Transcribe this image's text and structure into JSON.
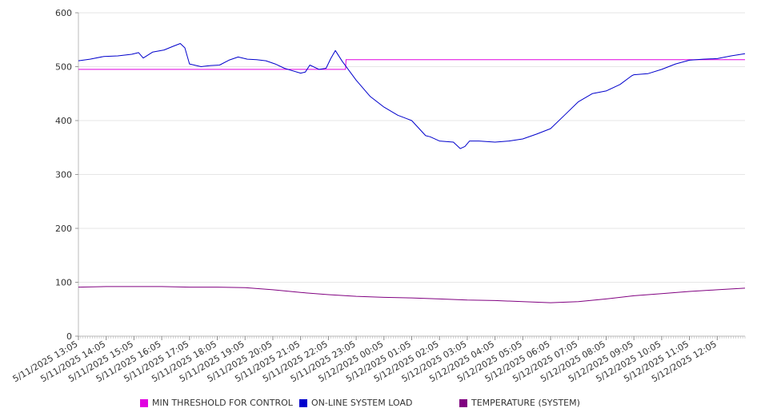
{
  "chart_data": {
    "type": "line",
    "ylim": [
      0,
      600
    ],
    "yticks": [
      0,
      100,
      200,
      300,
      400,
      500,
      600
    ],
    "x_tick_labels": [
      "5/11/2025 13:05",
      "5/11/2025 14:05",
      "5/11/2025 15:05",
      "5/11/2025 16:05",
      "5/11/2025 17:05",
      "5/11/2025 18:05",
      "5/11/2025 19:05",
      "5/11/2025 20:05",
      "5/11/2025 21:05",
      "5/11/2025 22:05",
      "5/11/2025 23:05",
      "5/12/2025 00:05",
      "5/12/2025 01:05",
      "5/12/2025 02:05",
      "5/12/2025 03:05",
      "5/12/2025 04:05",
      "5/12/2025 05:05",
      "5/12/2025 06:05",
      "5/12/2025 07:05",
      "5/12/2025 08:05",
      "5/12/2025 09:05",
      "5/12/2025 10:05",
      "5/12/2025 11:05",
      "5/12/2025 12:05"
    ],
    "grid": true,
    "legend_position": "bottom",
    "series": [
      {
        "name": "MIN THRESHOLD FOR CONTROL",
        "color": "#e000e0",
        "x": [
          "5/11/2025 13:05",
          "5/11/2025 22:42",
          "5/11/2025 22:43",
          "5/12/2025 13:05"
        ],
        "values": [
          495,
          495,
          513,
          513
        ]
      },
      {
        "name": "ON-LINE SYSTEM LOAD",
        "color": "#0000cc",
        "x": [
          "5/11/2025 13:05",
          "5/11/2025 13:30",
          "5/11/2025 14:00",
          "5/11/2025 14:30",
          "5/11/2025 15:00",
          "5/11/2025 15:15",
          "5/11/2025 15:25",
          "5/11/2025 15:45",
          "5/11/2025 16:10",
          "5/11/2025 16:30",
          "5/11/2025 16:45",
          "5/11/2025 16:55",
          "5/11/2025 17:05",
          "5/11/2025 17:30",
          "5/11/2025 17:50",
          "5/11/2025 18:10",
          "5/11/2025 18:30",
          "5/11/2025 18:50",
          "5/11/2025 19:10",
          "5/11/2025 19:30",
          "5/11/2025 19:50",
          "5/11/2025 20:10",
          "5/11/2025 20:30",
          "5/11/2025 20:45",
          "5/11/2025 21:05",
          "5/11/2025 21:15",
          "5/11/2025 21:25",
          "5/11/2025 21:45",
          "5/11/2025 22:00",
          "5/11/2025 22:10",
          "5/11/2025 22:20",
          "5/11/2025 22:35",
          "5/11/2025 23:05",
          "5/11/2025 23:35",
          "5/12/2025 00:05",
          "5/12/2025 00:35",
          "5/12/2025 01:05",
          "5/12/2025 01:35",
          "5/12/2025 01:45",
          "5/12/2025 02:05",
          "5/12/2025 02:35",
          "5/12/2025 02:50",
          "5/12/2025 03:00",
          "5/12/2025 03:10",
          "5/12/2025 03:30",
          "5/12/2025 04:05",
          "5/12/2025 04:35",
          "5/12/2025 05:05",
          "5/12/2025 05:35",
          "5/12/2025 06:05",
          "5/12/2025 06:35",
          "5/12/2025 07:05",
          "5/12/2025 07:35",
          "5/12/2025 08:05",
          "5/12/2025 08:35",
          "5/12/2025 09:00",
          "5/12/2025 09:05",
          "5/12/2025 09:35",
          "5/12/2025 10:05",
          "5/12/2025 10:35",
          "5/12/2025 11:05",
          "5/12/2025 11:35",
          "5/12/2025 12:05",
          "5/12/2025 12:35",
          "5/12/2025 13:05"
        ],
        "values": [
          511,
          514,
          519,
          520,
          523,
          526,
          516,
          527,
          531,
          538,
          543,
          535,
          505,
          500,
          502,
          503,
          512,
          518,
          514,
          513,
          511,
          505,
          497,
          493,
          488,
          490,
          503,
          495,
          497,
          515,
          530,
          510,
          475,
          445,
          425,
          410,
          400,
          372,
          370,
          362,
          360,
          348,
          352,
          362,
          362,
          360,
          362,
          366,
          375,
          385,
          410,
          435,
          450,
          455,
          467,
          483,
          485,
          487,
          495,
          505,
          512,
          514,
          515,
          520,
          524
        ]
      },
      {
        "name": "TEMPERATURE (SYSTEM)",
        "color": "#800080",
        "x": [
          "5/11/2025 13:05",
          "5/11/2025 14:05",
          "5/11/2025 15:05",
          "5/11/2025 16:05",
          "5/11/2025 17:05",
          "5/11/2025 18:05",
          "5/11/2025 19:05",
          "5/11/2025 20:05",
          "5/11/2025 21:05",
          "5/11/2025 22:05",
          "5/11/2025 23:05",
          "5/12/2025 00:05",
          "5/12/2025 01:05",
          "5/12/2025 02:05",
          "5/12/2025 03:05",
          "5/12/2025 04:05",
          "5/12/2025 05:05",
          "5/12/2025 06:05",
          "5/12/2025 07:05",
          "5/12/2025 08:05",
          "5/12/2025 09:05",
          "5/12/2025 10:05",
          "5/12/2025 11:05",
          "5/12/2025 12:05",
          "5/12/2025 13:05"
        ],
        "values": [
          91,
          92,
          92,
          92,
          91,
          91,
          90,
          86,
          81,
          77,
          74,
          72,
          71,
          69,
          67,
          66,
          64,
          62,
          64,
          69,
          75,
          79,
          83,
          86,
          89
        ]
      }
    ]
  }
}
